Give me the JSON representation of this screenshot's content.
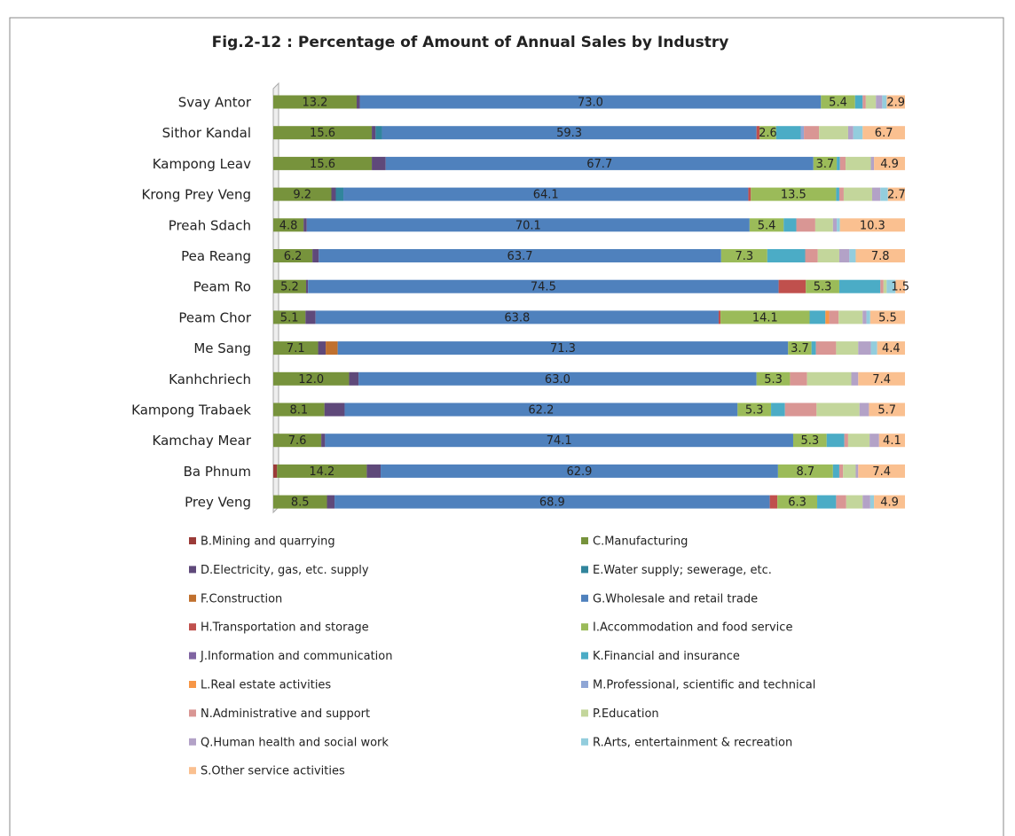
{
  "chart_data": {
    "type": "stacked-bar-horizontal",
    "title": "Fig.2-12 : Percentage of Amount of Annual Sales by  Industry",
    "categories": [
      "Svay Antor",
      "Sithor Kandal",
      "Kampong Leav",
      "Krong Prey Veng",
      "Preah Sdach",
      "Pea Reang",
      "Peam Ro",
      "Peam Chor",
      "Me Sang",
      "Kanhchriech",
      "Kampong Trabaek",
      "Kamchay Mear",
      "Ba Phnum",
      "Prey Veng"
    ],
    "xlim": [
      0,
      100
    ],
    "series": [
      {
        "name": "B.Mining and quarrying",
        "color": "#9b3b38",
        "values": [
          0,
          0,
          0,
          0,
          0,
          0,
          0,
          0,
          0,
          0,
          0,
          0,
          0.6,
          0
        ]
      },
      {
        "name": "C.Manufacturing",
        "color": "#77933c",
        "values": [
          13.2,
          15.6,
          15.6,
          9.2,
          4.8,
          6.2,
          5.2,
          5.1,
          7.1,
          12.0,
          8.1,
          7.6,
          14.2,
          8.5
        ],
        "value_labels": [
          "13.2",
          "15.6",
          "15.6",
          "9.2",
          "4.8",
          "6.2",
          "5.2",
          "5.1",
          "7.1",
          "12.0",
          "8.1",
          "7.6",
          "14.2",
          "8.5"
        ]
      },
      {
        "name": "D.Electricity, gas, etc. supply",
        "color": "#5f497a",
        "values": [
          0.5,
          0.6,
          2.2,
          0.7,
          0.5,
          1.0,
          0.3,
          1.6,
          1.2,
          1.5,
          3.2,
          0.6,
          2.2,
          1.2
        ]
      },
      {
        "name": "E.Water supply; sewerage, etc.",
        "color": "#31859c",
        "values": [
          0,
          1.0,
          0,
          1.2,
          0,
          0,
          0,
          0,
          0,
          0,
          0,
          0,
          0,
          0
        ]
      },
      {
        "name": "F.Construction",
        "color": "#c0702e",
        "values": [
          0,
          0,
          0,
          0,
          0,
          0,
          0,
          0,
          1.9,
          0,
          0,
          0,
          0,
          0
        ]
      },
      {
        "name": "G.Wholesale and retail trade",
        "color": "#4f81bd",
        "values": [
          73.0,
          59.3,
          67.7,
          64.1,
          70.1,
          63.7,
          74.5,
          63.8,
          71.3,
          63.0,
          62.2,
          74.1,
          62.9,
          68.9
        ],
        "value_labels": [
          "73.0",
          "59.3",
          "67.7",
          "64.1",
          "70.1",
          "63.7",
          "74.5",
          "63.8",
          "71.3",
          "63.0",
          "62.2",
          "74.1",
          "62.9",
          "68.9"
        ]
      },
      {
        "name": "H.Transportation and storage",
        "color": "#c0504d",
        "values": [
          0,
          0.5,
          0,
          0.4,
          0,
          0,
          4.3,
          0.3,
          0,
          0,
          0,
          0,
          0,
          1.2
        ]
      },
      {
        "name": "I.Accommodation and food service",
        "color": "#9bbb59",
        "values": [
          5.4,
          2.6,
          3.7,
          13.5,
          5.4,
          7.3,
          5.3,
          14.1,
          3.7,
          5.3,
          5.3,
          5.3,
          8.7,
          6.3
        ],
        "value_labels": [
          "5.4",
          "2.6",
          "3.7",
          "13.5",
          "5.4",
          "7.3",
          "5.3",
          "14.1",
          "3.7",
          "5.3",
          "5.3",
          "5.3",
          "8.7",
          "6.3"
        ]
      },
      {
        "name": "J.Information and communication",
        "color": "#8064a2",
        "values": [
          0,
          0,
          0,
          0,
          0,
          0,
          0,
          0,
          0,
          0,
          0,
          0,
          0,
          0
        ]
      },
      {
        "name": "K.Financial and insurance",
        "color": "#4bacc6",
        "values": [
          1.2,
          3.9,
          0.5,
          0.5,
          2.0,
          6.0,
          6.5,
          2.5,
          0.7,
          0,
          2.2,
          2.8,
          1.0,
          3.0
        ]
      },
      {
        "name": "L.Real estate activities",
        "color": "#f79646",
        "values": [
          0,
          0,
          0,
          0,
          0,
          0,
          0,
          0.6,
          0,
          0,
          0,
          0,
          0,
          0
        ]
      },
      {
        "name": "M.Professional, scientific and technical",
        "color": "#8fa6d5",
        "values": [
          0,
          0.5,
          0,
          0,
          0,
          0,
          0,
          0,
          0,
          0,
          0,
          0,
          0,
          0
        ]
      },
      {
        "name": "N.Administrative and support",
        "color": "#d99694",
        "values": [
          0.5,
          2.4,
          0.9,
          0.7,
          3.0,
          2.0,
          0.5,
          1.5,
          3.2,
          2.7,
          5.0,
          0.6,
          0.6,
          1.6
        ]
      },
      {
        "name": "P.Education",
        "color": "#c3d69b",
        "values": [
          1.6,
          4.6,
          4.0,
          4.5,
          2.8,
          3.4,
          0.5,
          3.8,
          3.5,
          7.0,
          6.8,
          3.4,
          2.0,
          2.6
        ]
      },
      {
        "name": "Q.Human health and social work",
        "color": "#b3a2c7",
        "values": [
          1.0,
          0.8,
          0.5,
          1.3,
          0.6,
          1.6,
          0,
          0.6,
          2.0,
          1.1,
          1.5,
          1.5,
          0.4,
          1.2
        ]
      },
      {
        "name": "R.Arts, entertainment & recreation",
        "color": "#93cddd",
        "values": [
          0.7,
          1.5,
          0,
          1.2,
          0.5,
          1.0,
          1.4,
          0.6,
          1.0,
          0,
          0,
          0,
          0,
          0.6
        ]
      },
      {
        "name": "S.Other service activities",
        "color": "#fac090",
        "values": [
          2.9,
          6.7,
          4.9,
          2.7,
          10.3,
          7.8,
          1.5,
          5.5,
          4.4,
          7.4,
          5.7,
          4.1,
          7.4,
          4.9
        ],
        "value_labels": [
          "2.9",
          "6.7",
          "4.9",
          "2.7",
          "10.3",
          "7.8",
          "1.5",
          "5.5",
          "4.4",
          "7.4",
          "5.7",
          "4.1",
          "7.4",
          "4.9"
        ]
      }
    ]
  }
}
